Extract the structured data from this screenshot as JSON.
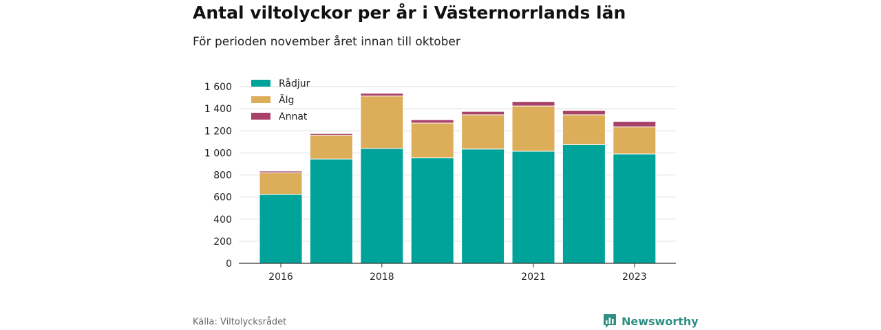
{
  "title": "Antal viltolyckor per år i Västernorrlands län",
  "subtitle": "För perioden november året innan till oktober",
  "source": "Källa: Viltolycksrådet",
  "brand": {
    "name": "Newsworthy",
    "icon": "bar-chart-badge-icon"
  },
  "chart_data": {
    "type": "bar",
    "stacked": true,
    "categories": [
      "2016",
      "2017",
      "2018",
      "2019",
      "2020",
      "2021",
      "2022",
      "2023"
    ],
    "x_tick_labels": [
      "2016",
      "",
      "2018",
      "",
      "",
      "2021",
      "",
      "2023"
    ],
    "series": [
      {
        "name": "Rådjur",
        "color": "#00a39a",
        "values": [
          625,
          945,
          1040,
          955,
          1035,
          1015,
          1075,
          990
        ]
      },
      {
        "name": "Älg",
        "color": "#dcae5a",
        "values": [
          195,
          215,
          475,
          315,
          310,
          410,
          270,
          245
        ]
      },
      {
        "name": "Annat",
        "color": "#a84268",
        "values": [
          15,
          15,
          25,
          30,
          30,
          40,
          40,
          50
        ]
      }
    ],
    "y_ticks": [
      0,
      200,
      400,
      600,
      800,
      1000,
      1200,
      1400,
      1600
    ],
    "y_tick_labels": [
      "0",
      "200",
      "400",
      "600",
      "800",
      "1 000",
      "1 200",
      "1 400",
      "1 600"
    ],
    "ylim": [
      0,
      1600
    ],
    "grid": true,
    "legend_position": "top-left"
  }
}
